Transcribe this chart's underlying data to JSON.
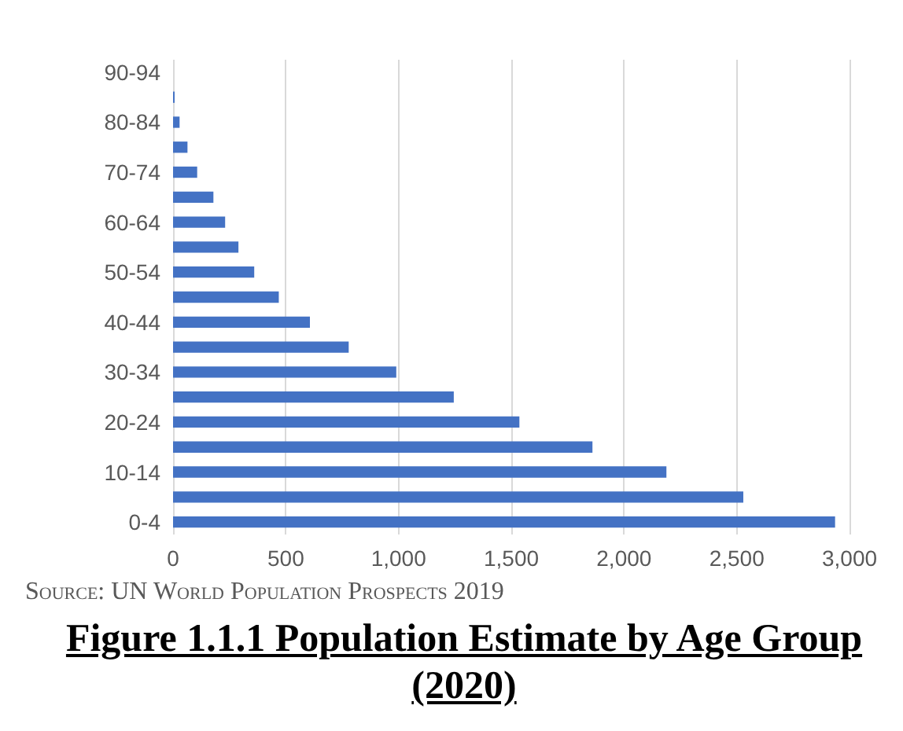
{
  "chart_data": {
    "type": "bar",
    "orientation": "horizontal",
    "title": "Figure 1.1.1 Population Estimate by Age Group (2020)",
    "annotations": [
      "Source: UN World Population Prospects 2019"
    ],
    "categories": [
      "90-94",
      null,
      "80-84",
      null,
      "70-74",
      null,
      "60-64",
      null,
      "50-54",
      null,
      "40-44",
      null,
      "30-34",
      null,
      "20-24",
      null,
      "10-14",
      null,
      "0-4"
    ],
    "values": [
      0,
      7,
      29,
      64,
      107,
      179,
      231,
      290,
      360,
      469,
      607,
      779,
      990,
      1245,
      1536,
      1860,
      2188,
      2529,
      2936
    ],
    "color": "#4472c4",
    "xlim": [
      0,
      3000
    ],
    "xticks": [
      0,
      500,
      {
        "value": 1000,
        "label": "1,000"
      },
      {
        "value": 1500,
        "label": "1,500"
      },
      {
        "value": 2000,
        "label": "2,000"
      },
      {
        "value": 2500,
        "label": "2,500"
      },
      {
        "value": 3000,
        "label": "3,000"
      }
    ],
    "grid": "x"
  }
}
